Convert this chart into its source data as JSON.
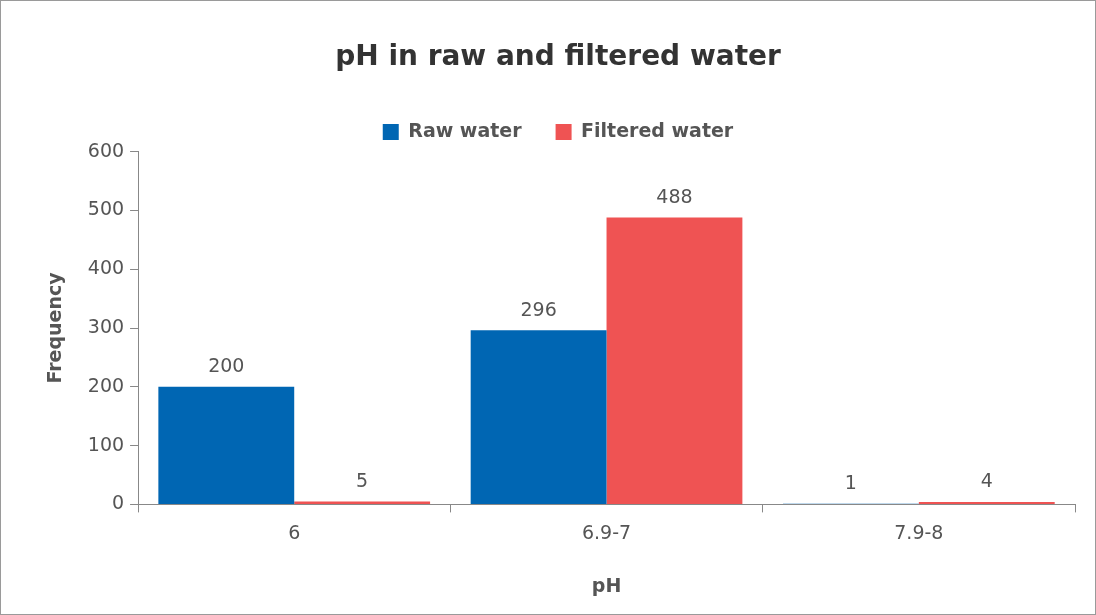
{
  "chart_data": {
    "type": "bar",
    "title": "pH in raw and filtered water",
    "xlabel": "pH",
    "ylabel": "Frequency",
    "categories": [
      "6",
      "6.9-7",
      "7.9-8"
    ],
    "series": [
      {
        "name": "Raw water",
        "color": "#0066b3",
        "values": [
          200,
          296,
          1
        ]
      },
      {
        "name": "Filtered water",
        "color": "#ef5353",
        "values": [
          5,
          488,
          4
        ]
      }
    ],
    "ylim": [
      0,
      600
    ],
    "yticks": [
      0,
      100,
      200,
      300,
      400,
      500,
      600
    ],
    "grid": false,
    "legend": "top",
    "data_labels": true
  }
}
